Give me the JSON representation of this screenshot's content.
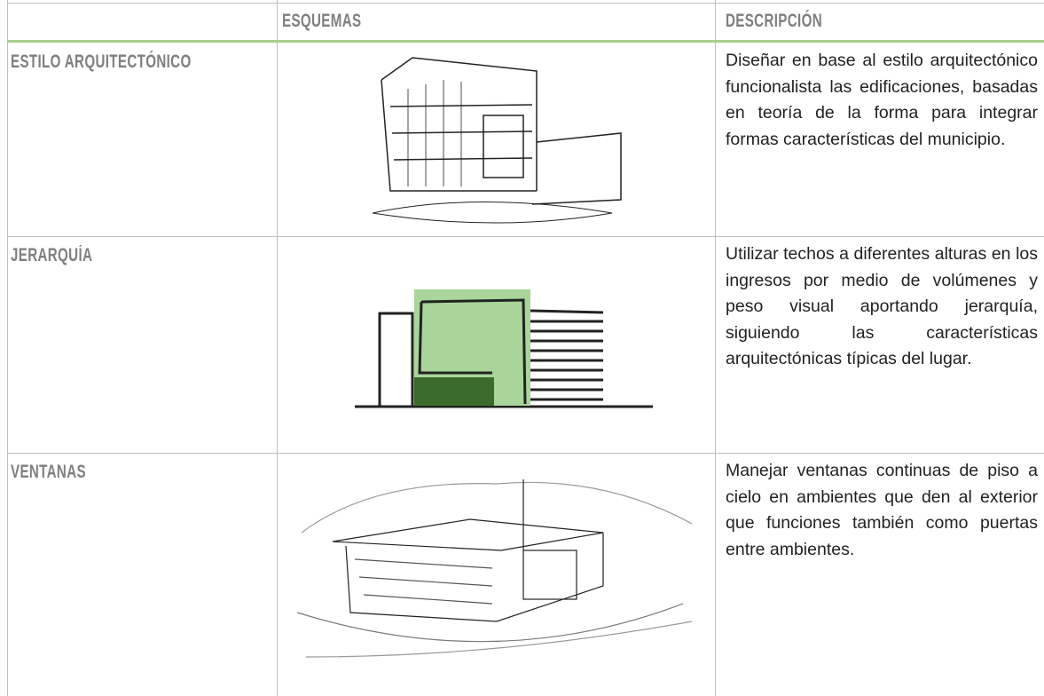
{
  "table": {
    "columns": [
      "ESQUEMAS",
      "DESCRIPCIÓN"
    ],
    "rows": [
      {
        "label": "ESTILO ARQUITECTÓNICO",
        "description": "Diseñar en base al estilo arquitectónico funcionalista las edificaciones, basadas en teoría de la forma para integrar formas características del municipio."
      },
      {
        "label": "JERARQUÍA",
        "description": "Utilizar techos a diferentes alturas en los ingresos por medio de volúmenes y peso visual aportando jerarquía, siguiendo las características arquitectónicas típicas del lugar."
      },
      {
        "label": "VENTANAS",
        "description": "Manejar ventanas continuas de piso a cielo en ambientes que den al exterior que funciones también como puertas entre ambientes."
      }
    ]
  }
}
